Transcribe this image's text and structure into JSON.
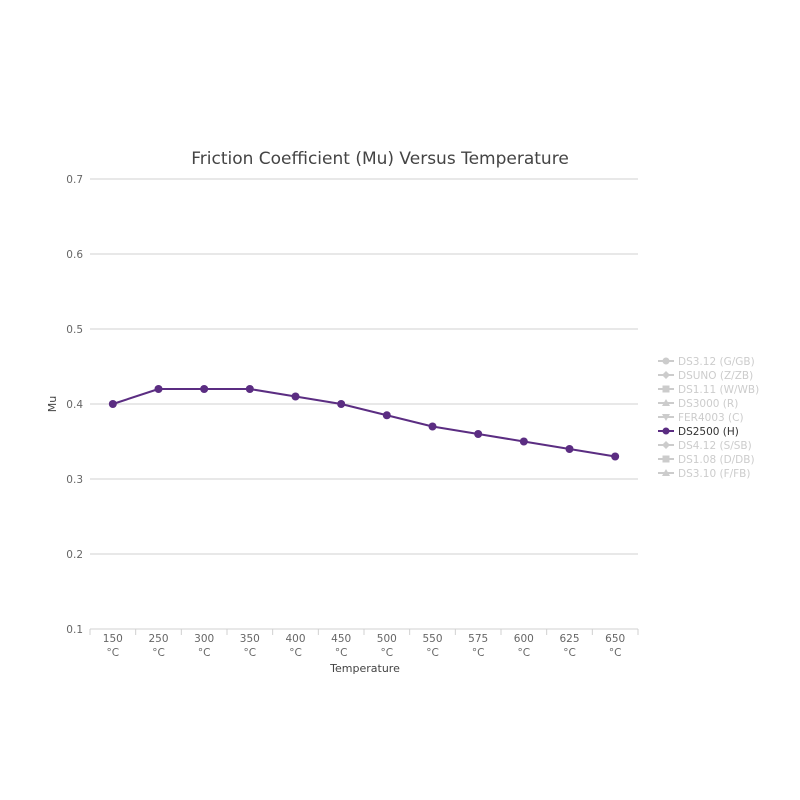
{
  "chart_data": {
    "type": "line",
    "title": "Friction Coefficient (Mu) Versus Temperature",
    "xlabel": "Temperature",
    "ylabel": "Mu",
    "ylim": [
      0.1,
      0.7
    ],
    "yticks": [
      "0.7",
      "0.6",
      "0.5",
      "0.4",
      "0.3",
      "0.2",
      "0.1"
    ],
    "grid": true,
    "legend_position": "right",
    "categories": [
      [
        "150",
        "°C"
      ],
      [
        "250",
        "°C"
      ],
      [
        "300",
        "°C"
      ],
      [
        "350",
        "°C"
      ],
      [
        "400",
        "°C"
      ],
      [
        "450",
        "°C"
      ],
      [
        "500",
        "°C"
      ],
      [
        "550",
        "°C"
      ],
      [
        "575",
        "°C"
      ],
      [
        "600",
        "°C"
      ],
      [
        "625",
        "°C"
      ],
      [
        "650",
        "°C"
      ]
    ],
    "series": [
      {
        "name": "DS2500 (H)",
        "color": "#5b2d82",
        "values": [
          0.4,
          0.42,
          0.42,
          0.42,
          0.41,
          0.4,
          0.385,
          0.37,
          0.36,
          0.35,
          0.34,
          0.33
        ]
      }
    ],
    "legend": [
      {
        "label": "DS3.12 (G/GB)",
        "marker": "circle",
        "active": false
      },
      {
        "label": "DSUNO (Z/ZB)",
        "marker": "diamond",
        "active": false
      },
      {
        "label": "DS1.11 (W/WB)",
        "marker": "square",
        "active": false
      },
      {
        "label": "DS3000 (R)",
        "marker": "triangle",
        "active": false
      },
      {
        "label": "FER4003 (C)",
        "marker": "triangle-down",
        "active": false
      },
      {
        "label": "DS2500 (H)",
        "marker": "circle",
        "active": true
      },
      {
        "label": "DS4.12 (S/SB)",
        "marker": "diamond",
        "active": false
      },
      {
        "label": "DS1.08 (D/DB)",
        "marker": "square",
        "active": false
      },
      {
        "label": "DS3.10 (F/FB)",
        "marker": "triangle",
        "active": false
      }
    ],
    "colors": {
      "inactive_legend": "#cccccc",
      "active_legend": "#5b2d82",
      "active_text": "#333333",
      "grid": "#d0d0d0"
    }
  }
}
